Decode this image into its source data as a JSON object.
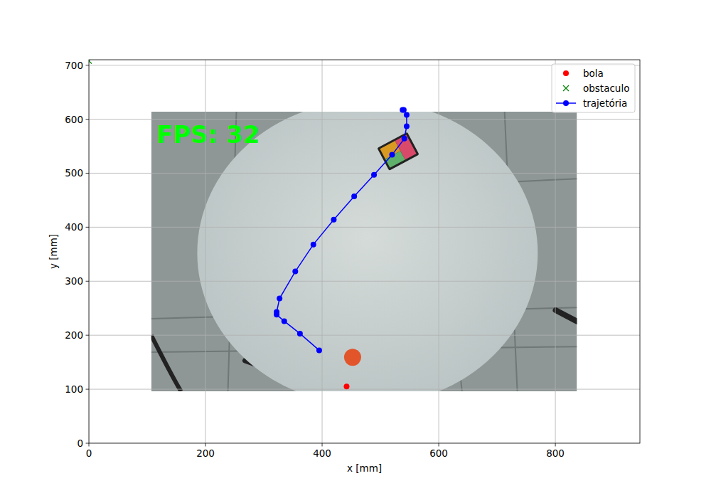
{
  "chart_data": {
    "type": "scatter",
    "x_label": "x [mm]",
    "y_label": "y [mm]",
    "xlim": [
      0,
      945
    ],
    "ylim": [
      0,
      710
    ],
    "xticks": [
      0,
      200,
      400,
      600,
      800
    ],
    "yticks": [
      0,
      100,
      200,
      300,
      400,
      500,
      600,
      700
    ],
    "grid": true,
    "legend": "upper right",
    "image": {
      "extent": [
        107,
        837,
        96,
        614
      ],
      "text": "FPS: 32"
    },
    "series": [
      {
        "name": "bola",
        "color": "#ff0000",
        "marker": "o",
        "line_style": "none",
        "x": [
          442
        ],
        "y": [
          105
        ]
      },
      {
        "name": "obstaculo",
        "color": "#008000",
        "marker": "x",
        "line_style": "none",
        "x": [
          0
        ],
        "y": [
          708
        ]
      },
      {
        "name": "trajetória",
        "color": "#0000ff",
        "marker": "o",
        "line_style": "solid",
        "x": [
          395,
          362,
          335,
          322,
          322,
          327,
          354,
          385,
          420,
          455,
          489,
          520,
          541,
          545,
          545,
          540,
          538
        ],
        "y": [
          172,
          203,
          226,
          238,
          243,
          268,
          318,
          368,
          414,
          457,
          497,
          534,
          564,
          587,
          608,
          617,
          617
        ]
      }
    ]
  }
}
